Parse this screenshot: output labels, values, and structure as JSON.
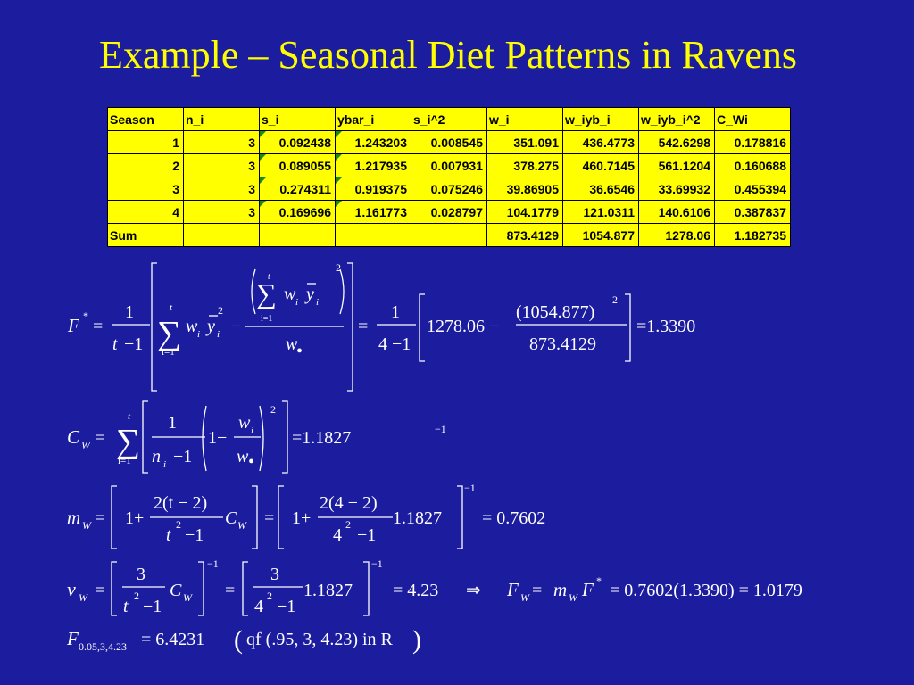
{
  "title": "Example – Seasonal Diet Patterns in Ravens",
  "table": {
    "header": [
      "Season",
      "n_i",
      "s_i",
      "ybar_i",
      "s_i^2",
      "w_i",
      "w_iyb_i",
      "w_iyb_i^2",
      "C_Wi"
    ],
    "rows": [
      [
        "1",
        "3",
        "0.092438",
        "1.243203",
        "0.008545",
        "351.091",
        "436.4773",
        "542.6298",
        "0.178816"
      ],
      [
        "2",
        "3",
        "0.089055",
        "1.217935",
        "0.007931",
        "378.275",
        "460.7145",
        "561.1204",
        "0.160688"
      ],
      [
        "3",
        "3",
        "0.274311",
        "0.919375",
        "0.075246",
        "39.86905",
        "36.6546",
        "33.69932",
        "0.455394"
      ],
      [
        "4",
        "3",
        "0.169696",
        "1.161773",
        "0.028797",
        "104.1779",
        "121.0311",
        "140.6106",
        "0.387837"
      ],
      [
        "Sum",
        null,
        null,
        null,
        null,
        "873.4129",
        "1054.877",
        "1278.06",
        "1.182735"
      ]
    ]
  },
  "equations": [
    {
      "parts": [
        "F",
        "*",
        "=",
        "1",
        "t",
        "−1",
        "∑",
        "t",
        "i=1",
        "w",
        "i",
        "y",
        "i",
        "2",
        "−",
        "∑",
        "t",
        "i=1",
        "w",
        "i",
        "y",
        "i",
        "2",
        "w",
        "•",
        "=",
        "1",
        "4 −1",
        "1278.06 −",
        "(1054.877)",
        "2",
        "873.4129",
        "=1.3390"
      ]
    },
    {
      "parts": [
        "C",
        "W",
        "=",
        "∑",
        "t",
        "i=1",
        "1",
        "n",
        "i",
        "−1",
        "1−",
        "w",
        "i",
        "w",
        "•",
        "2",
        "=1.1827",
        "−1"
      ]
    },
    {
      "parts": [
        "m",
        "W",
        "=",
        "1+",
        "2(t − 2)",
        "t",
        "2",
        "−1",
        "C",
        "W",
        "=",
        "1+",
        "2(4 − 2)",
        "4",
        "2",
        "−1",
        "1.1827",
        "−1",
        "= 0.7602"
      ]
    },
    {
      "parts": [
        "ν",
        "W",
        "=",
        "3",
        "t",
        "2",
        "−1",
        "C",
        "W",
        "−1",
        "=",
        "3",
        "4",
        "2",
        "−1",
        "1.1827",
        "−1",
        "= 4.23",
        "⇒",
        "F",
        "W",
        "=",
        "m",
        "W",
        "F",
        "*",
        "= 0.7602(1.3390) = 1.0179"
      ]
    },
    {
      "parts": [
        "F",
        "0.05,3,4.23",
        "= 6.4231",
        "(",
        "qf (.95, 3, 4.23)  in R",
        ")"
      ]
    }
  ]
}
